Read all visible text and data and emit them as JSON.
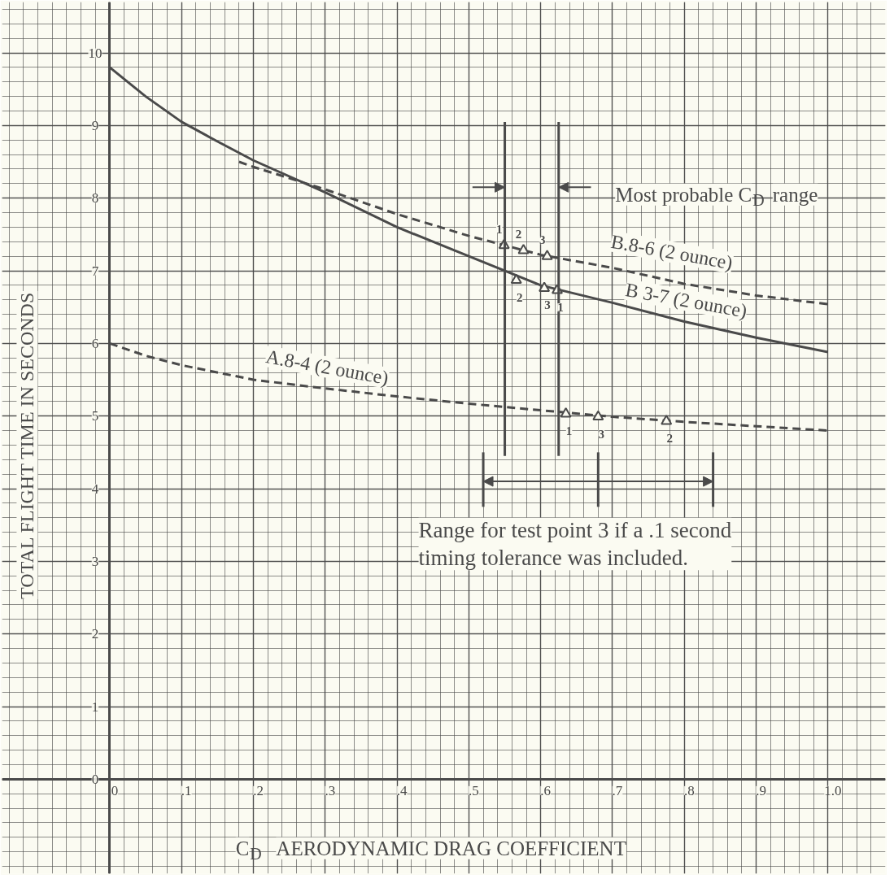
{
  "chart_data": {
    "type": "line",
    "xlabel": "C$_{D}$  AERODYNAMIC DRAG COEFFICIENT",
    "ylabel": "TOTAL FLIGHT TIME IN SECONDS",
    "series": [
      {
        "name": "B.8-6 (2 ounce)",
        "color": "#4a4a4a",
        "line_style": "dashed",
        "x": [
          0.18,
          0.2,
          0.3,
          0.4,
          0.5,
          0.55,
          0.6,
          0.7,
          0.8,
          0.9,
          1.0
        ],
        "values": [
          8.5,
          8.43,
          8.12,
          7.78,
          7.48,
          7.35,
          7.22,
          7.04,
          6.82,
          6.66,
          6.54
        ]
      },
      {
        "name": "B 3-7 (2 ounce)",
        "color": "#4a4a4a",
        "line_style": "solid",
        "x": [
          0,
          0.05,
          0.1,
          0.15,
          0.2,
          0.3,
          0.4,
          0.5,
          0.6,
          0.7,
          0.8,
          0.9,
          1.0
        ],
        "values": [
          9.8,
          9.4,
          9.05,
          8.78,
          8.52,
          8.08,
          7.6,
          7.2,
          6.8,
          6.56,
          6.3,
          6.08,
          5.88
        ]
      },
      {
        "name": "A.8-4 (2 ounce)",
        "color": "#4a4a4a",
        "line_style": "dashed",
        "x": [
          0,
          0.05,
          0.1,
          0.2,
          0.3,
          0.4,
          0.5,
          0.6,
          0.7,
          0.8,
          0.9,
          1.0
        ],
        "values": [
          6.0,
          5.83,
          5.7,
          5.5,
          5.38,
          5.27,
          5.17,
          5.08,
          4.99,
          4.92,
          4.86,
          4.8
        ]
      },
      {
        "type": "scatter",
        "marker": "triangle",
        "color": "#4a4a4a",
        "x": [
          0.549,
          0.576,
          0.609
        ],
        "values": [
          7.35,
          7.28,
          7.2
        ]
      },
      {
        "type": "scatter",
        "marker": "triangle",
        "color": "#4a4a4a",
        "x": [
          0.566,
          0.605,
          0.623
        ],
        "values": [
          6.87,
          6.76,
          6.73
        ]
      },
      {
        "type": "scatter",
        "marker": "triangle",
        "color": "#4a4a4a",
        "x": [
          0.635,
          0.68,
          0.775
        ],
        "values": [
          5.03,
          4.99,
          4.93
        ]
      }
    ],
    "ref_lines": [
      {
        "axis": "x",
        "value": 0.55
      },
      {
        "axis": "x",
        "value": 0.625,
        "label": "Most probable C$_{D}$ range"
      },
      {
        "axis": "x",
        "value": 0.52
      },
      {
        "axis": "x",
        "value": 0.68
      },
      {
        "axis": "x",
        "value": 0.84,
        "label": "Range for test point 3 if a .1 second\ntiming tolerance was included."
      }
    ],
    "annotations": [
      {
        "text": "1",
        "x": 0.549,
        "y": 7.35
      },
      {
        "text": "2",
        "x": 0.576,
        "y": 7.28
      },
      {
        "text": "3",
        "x": 0.609,
        "y": 7.2
      },
      {
        "text": "2",
        "x": 0.566,
        "y": 6.87
      },
      {
        "text": "3",
        "x": 0.605,
        "y": 6.76
      },
      {
        "text": "1",
        "x": 0.623,
        "y": 6.73
      },
      {
        "text": "1",
        "x": 0.635,
        "y": 5.03
      },
      {
        "text": "3",
        "x": 0.68,
        "y": 4.99
      },
      {
        "text": "2",
        "x": 0.775,
        "y": 4.93
      }
    ],
    "xlim": [
      -0.15,
      1.08
    ],
    "ylim": [
      -1.3,
      10.7
    ],
    "xticks": [
      0,
      {
        "value": 0.1,
        "label": ".1"
      },
      {
        "value": 0.2,
        "label": ".2"
      },
      {
        "value": 0.3,
        "label": ".3"
      },
      {
        "value": 0.4,
        "label": ".4"
      },
      {
        "value": 0.5,
        "label": ".5"
      },
      {
        "value": 0.6,
        "label": ".6"
      },
      {
        "value": 0.7,
        "label": ".7"
      },
      {
        "value": 0.8,
        "label": ".8"
      },
      {
        "value": 0.9,
        "label": ".9"
      },
      {
        "value": 1.0,
        "label": "1.0"
      }
    ],
    "yticks": [
      0,
      1,
      2,
      3,
      4,
      5,
      6,
      7,
      8,
      9,
      10
    ],
    "grid": true
  }
}
